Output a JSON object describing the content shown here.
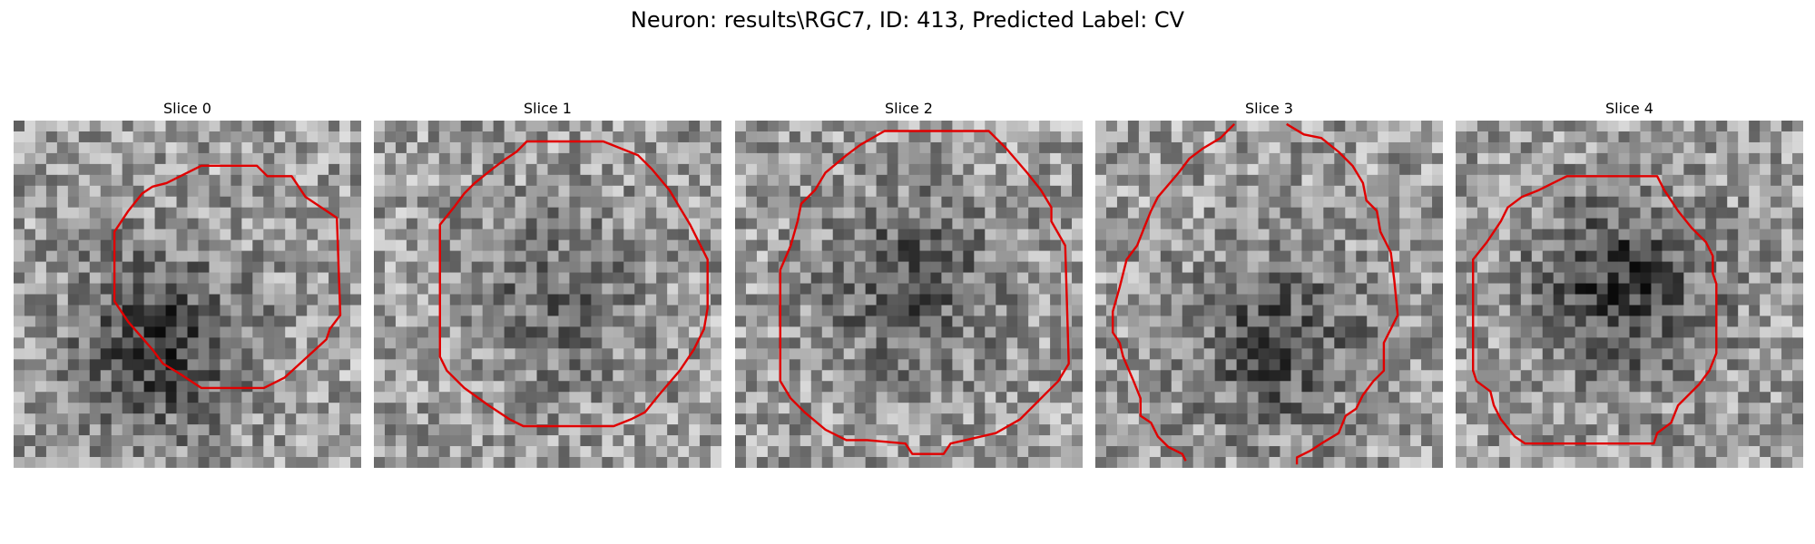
{
  "figure": {
    "title": "Neuron: results\\RGC7, ID: 413, Predicted Label: CV"
  },
  "panels": [
    {
      "title": "Slice 0",
      "seed": 11,
      "dark_center": [
        0.42,
        0.64
      ],
      "dark_strength": 0.38,
      "contour": [
        [
          0.54,
          0.13
        ],
        [
          0.7,
          0.13
        ],
        [
          0.73,
          0.16
        ],
        [
          0.8,
          0.16
        ],
        [
          0.84,
          0.22
        ],
        [
          0.93,
          0.28
        ],
        [
          0.94,
          0.56
        ],
        [
          0.91,
          0.6
        ],
        [
          0.9,
          0.63
        ],
        [
          0.78,
          0.74
        ],
        [
          0.72,
          0.77
        ],
        [
          0.54,
          0.77
        ],
        [
          0.48,
          0.73
        ],
        [
          0.43,
          0.7
        ],
        [
          0.4,
          0.66
        ],
        [
          0.33,
          0.58
        ],
        [
          0.29,
          0.52
        ],
        [
          0.29,
          0.32
        ],
        [
          0.33,
          0.26
        ],
        [
          0.37,
          0.21
        ],
        [
          0.4,
          0.19
        ],
        [
          0.44,
          0.18
        ],
        [
          0.5,
          0.15
        ]
      ],
      "gaps": []
    },
    {
      "title": "Slice 1",
      "seed": 23,
      "dark_center": [
        0.52,
        0.52
      ],
      "dark_strength": 0.2,
      "contour": [
        [
          0.44,
          0.06
        ],
        [
          0.66,
          0.06
        ],
        [
          0.71,
          0.08
        ],
        [
          0.76,
          0.1
        ],
        [
          0.8,
          0.14
        ],
        [
          0.85,
          0.2
        ],
        [
          0.88,
          0.25
        ],
        [
          0.91,
          0.3
        ],
        [
          0.96,
          0.4
        ],
        [
          0.96,
          0.54
        ],
        [
          0.95,
          0.6
        ],
        [
          0.92,
          0.66
        ],
        [
          0.88,
          0.72
        ],
        [
          0.82,
          0.79
        ],
        [
          0.78,
          0.84
        ],
        [
          0.74,
          0.86
        ],
        [
          0.69,
          0.88
        ],
        [
          0.43,
          0.88
        ],
        [
          0.39,
          0.86
        ],
        [
          0.33,
          0.82
        ],
        [
          0.26,
          0.77
        ],
        [
          0.21,
          0.72
        ],
        [
          0.19,
          0.68
        ],
        [
          0.19,
          0.3
        ],
        [
          0.23,
          0.25
        ],
        [
          0.26,
          0.21
        ],
        [
          0.29,
          0.18
        ],
        [
          0.34,
          0.14
        ],
        [
          0.38,
          0.11
        ],
        [
          0.41,
          0.09
        ]
      ],
      "gaps": []
    },
    {
      "title": "Slice 2",
      "seed": 37,
      "dark_center": [
        0.5,
        0.48
      ],
      "dark_strength": 0.28,
      "contour": [
        [
          0.43,
          0.03
        ],
        [
          0.73,
          0.03
        ],
        [
          0.78,
          0.08
        ],
        [
          0.84,
          0.15
        ],
        [
          0.88,
          0.2
        ],
        [
          0.91,
          0.25
        ],
        [
          0.91,
          0.29
        ],
        [
          0.95,
          0.36
        ],
        [
          0.96,
          0.7
        ],
        [
          0.93,
          0.75
        ],
        [
          0.9,
          0.78
        ],
        [
          0.82,
          0.86
        ],
        [
          0.75,
          0.9
        ],
        [
          0.62,
          0.93
        ],
        [
          0.6,
          0.96
        ],
        [
          0.51,
          0.96
        ],
        [
          0.49,
          0.93
        ],
        [
          0.38,
          0.92
        ],
        [
          0.32,
          0.92
        ],
        [
          0.26,
          0.89
        ],
        [
          0.2,
          0.84
        ],
        [
          0.16,
          0.8
        ],
        [
          0.13,
          0.75
        ],
        [
          0.13,
          0.43
        ],
        [
          0.16,
          0.36
        ],
        [
          0.18,
          0.29
        ],
        [
          0.19,
          0.24
        ],
        [
          0.23,
          0.2
        ],
        [
          0.26,
          0.15
        ],
        [
          0.32,
          0.1
        ],
        [
          0.36,
          0.07
        ]
      ],
      "gaps": []
    },
    {
      "title": "Slice 3",
      "seed": 51,
      "dark_center": [
        0.52,
        0.64
      ],
      "dark_strength": 0.3,
      "contour": [
        [
          0.4,
          0.01
        ],
        [
          0.36,
          0.05
        ],
        [
          0.31,
          0.08
        ],
        [
          0.27,
          0.11
        ],
        [
          0.24,
          0.15
        ],
        [
          0.18,
          0.22
        ],
        [
          0.16,
          0.26
        ],
        [
          0.14,
          0.31
        ],
        [
          0.12,
          0.36
        ],
        [
          0.09,
          0.4
        ],
        [
          0.07,
          0.48
        ],
        [
          0.05,
          0.55
        ],
        [
          0.05,
          0.61
        ],
        [
          0.07,
          0.64
        ],
        [
          0.08,
          0.68
        ],
        [
          0.11,
          0.75
        ],
        [
          0.13,
          0.8
        ],
        [
          0.13,
          0.85
        ],
        [
          0.16,
          0.87
        ],
        [
          0.18,
          0.91
        ],
        [
          0.21,
          0.94
        ],
        [
          0.25,
          0.96
        ],
        [
          0.26,
          0.98
        ],
        "break",
        [
          0.55,
          0.01
        ],
        [
          0.6,
          0.04
        ],
        [
          0.65,
          0.05
        ],
        [
          0.7,
          0.09
        ],
        [
          0.74,
          0.13
        ],
        [
          0.77,
          0.18
        ],
        [
          0.78,
          0.23
        ],
        [
          0.81,
          0.26
        ],
        [
          0.82,
          0.32
        ],
        [
          0.85,
          0.38
        ],
        [
          0.86,
          0.46
        ],
        [
          0.87,
          0.56
        ],
        [
          0.85,
          0.6
        ],
        [
          0.83,
          0.64
        ],
        [
          0.83,
          0.72
        ],
        [
          0.8,
          0.75
        ],
        [
          0.77,
          0.79
        ],
        [
          0.75,
          0.83
        ],
        [
          0.72,
          0.85
        ],
        [
          0.7,
          0.9
        ],
        [
          0.65,
          0.93
        ],
        [
          0.62,
          0.95
        ],
        [
          0.58,
          0.97
        ],
        [
          0.58,
          0.99
        ]
      ],
      "gaps": []
    },
    {
      "title": "Slice 4",
      "seed": 67,
      "dark_center": [
        0.48,
        0.48
      ],
      "dark_strength": 0.4,
      "contour": [
        [
          0.32,
          0.16
        ],
        [
          0.58,
          0.16
        ],
        [
          0.6,
          0.2
        ],
        [
          0.62,
          0.23
        ],
        [
          0.64,
          0.26
        ],
        [
          0.68,
          0.31
        ],
        [
          0.72,
          0.35
        ],
        [
          0.74,
          0.39
        ],
        [
          0.74,
          0.44
        ],
        [
          0.75,
          0.47
        ],
        [
          0.75,
          0.67
        ],
        [
          0.73,
          0.72
        ],
        [
          0.7,
          0.76
        ],
        [
          0.64,
          0.82
        ],
        [
          0.62,
          0.87
        ],
        [
          0.58,
          0.9
        ],
        [
          0.57,
          0.93
        ],
        [
          0.2,
          0.93
        ],
        [
          0.17,
          0.91
        ],
        [
          0.13,
          0.86
        ],
        [
          0.11,
          0.82
        ],
        [
          0.1,
          0.78
        ],
        [
          0.06,
          0.75
        ],
        [
          0.05,
          0.72
        ],
        [
          0.05,
          0.4
        ],
        [
          0.09,
          0.35
        ],
        [
          0.13,
          0.29
        ],
        [
          0.15,
          0.25
        ],
        [
          0.19,
          0.22
        ],
        [
          0.24,
          0.2
        ],
        [
          0.28,
          0.18
        ]
      ],
      "gaps": []
    }
  ],
  "style": {
    "contour_color": "#e00000"
  }
}
